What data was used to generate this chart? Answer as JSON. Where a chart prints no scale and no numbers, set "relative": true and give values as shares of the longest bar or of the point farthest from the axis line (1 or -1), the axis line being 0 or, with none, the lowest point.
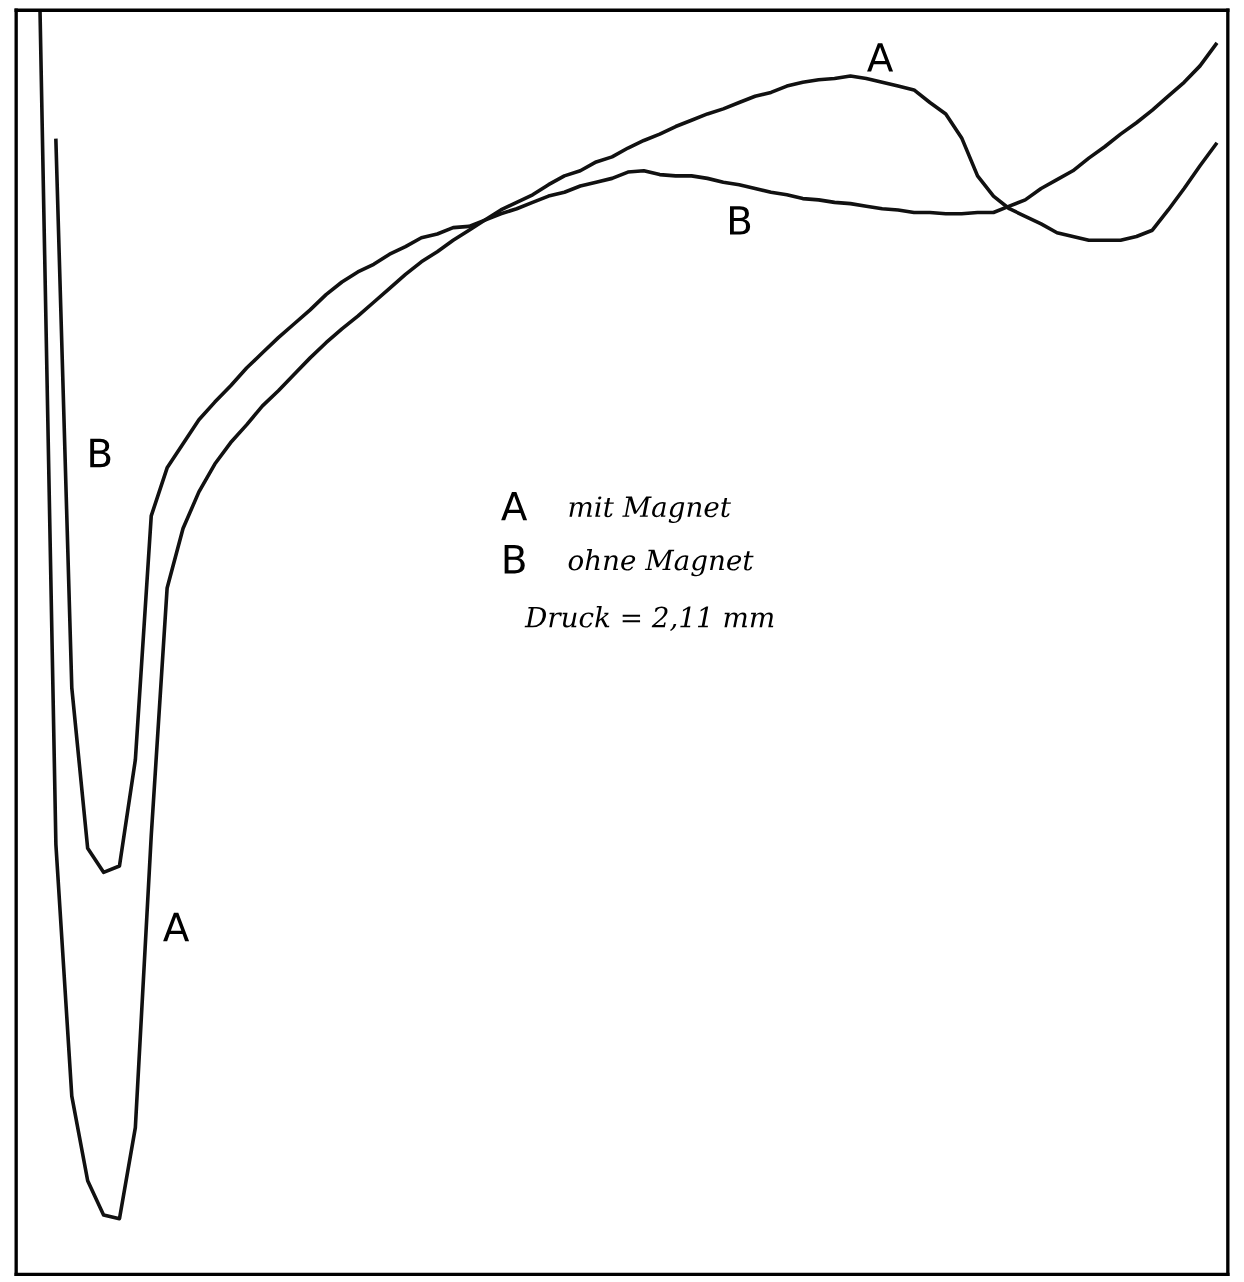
{
  "chart_data": {
    "type": "line",
    "relative": true,
    "tick_labels": false,
    "categories": [
      null,
      null,
      null,
      null,
      null,
      null,
      null,
      null,
      null,
      null,
      null,
      null,
      null,
      null,
      null,
      null,
      null,
      null,
      null,
      null,
      null,
      null,
      null,
      null,
      null,
      null,
      null,
      null,
      null,
      null,
      null,
      null,
      null,
      null,
      null,
      null,
      null,
      null,
      null,
      null,
      null,
      null,
      null,
      null,
      null,
      null,
      null,
      null,
      null,
      null,
      null,
      null,
      null,
      null,
      null,
      null,
      null,
      null,
      null,
      null,
      null,
      null,
      null,
      null,
      null,
      null,
      null,
      null,
      null,
      null,
      null,
      null,
      null,
      null,
      null
    ],
    "series": [
      {
        "color": "#111111",
        "values": [
          1.0,
          0.34,
          0.141,
          0.074,
          0.047,
          0.044,
          0.116,
          0.347,
          0.543,
          0.59,
          0.619,
          0.641,
          0.658,
          0.672,
          0.687,
          0.699,
          0.712,
          0.725,
          0.737,
          0.748,
          0.758,
          0.769,
          0.78,
          0.791,
          0.801,
          0.809,
          0.818,
          0.826,
          0.834,
          0.842,
          0.848,
          0.854,
          0.862,
          0.869,
          0.873,
          0.88,
          0.884,
          0.891,
          0.897,
          0.902,
          0.908,
          0.913,
          0.918,
          0.922,
          0.927,
          0.932,
          0.935,
          0.94,
          0.943,
          0.945,
          0.946,
          0.948,
          0.946,
          0.943,
          0.94,
          0.937,
          0.927,
          0.918,
          0.899,
          0.869,
          0.853,
          0.843,
          0.837,
          0.831,
          0.824,
          0.821,
          0.818,
          0.818,
          0.818,
          0.821,
          0.826,
          0.842,
          0.859,
          0.877,
          0.894
        ]
      },
      {
        "color": "#111111",
        "values": [
          null,
          0.897,
          0.464,
          0.337,
          0.318,
          0.323,
          0.407,
          0.6,
          0.638,
          0.657,
          0.676,
          0.69,
          0.703,
          0.717,
          0.729,
          0.741,
          0.752,
          0.763,
          0.775,
          0.785,
          0.793,
          0.799,
          0.807,
          0.813,
          0.82,
          0.823,
          0.828,
          0.829,
          0.834,
          0.839,
          0.843,
          0.848,
          0.853,
          0.856,
          0.861,
          0.864,
          0.867,
          0.872,
          0.873,
          0.87,
          0.869,
          0.869,
          0.867,
          0.864,
          0.862,
          0.859,
          0.856,
          0.854,
          0.851,
          0.85,
          0.848,
          0.847,
          0.845,
          0.843,
          0.842,
          0.84,
          0.84,
          0.839,
          0.839,
          0.84,
          0.84,
          0.845,
          0.85,
          0.859,
          0.866,
          0.873,
          0.883,
          0.892,
          0.902,
          0.911,
          0.921,
          0.932,
          0.943,
          0.956,
          0.973
        ]
      }
    ],
    "annotations": [
      "A",
      "B",
      "B",
      "A",
      "A",
      "mit Magnet",
      "B",
      "ohne Magnet",
      "Druck = 2,11 mm"
    ]
  }
}
